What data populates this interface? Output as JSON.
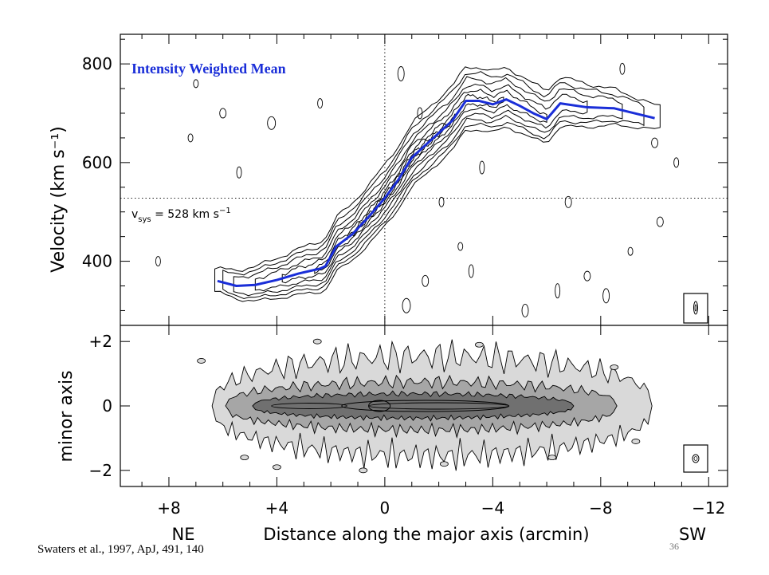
{
  "colors": {
    "mean_line": "#1a2ed8",
    "contour": "#000000",
    "fill_light": "#d9d9d9",
    "fill_mid": "#a6a6a6",
    "fill_dark": "#707070"
  },
  "chart_data": [
    {
      "type": "line",
      "panel": "top",
      "title": "Intensity Weighted Mean",
      "xlabel": "",
      "ylabel": "Velocity (km s⁻¹)",
      "xlim": [
        9.8,
        -12.7
      ],
      "ylim": [
        270,
        860
      ],
      "x_tick_values": [
        8,
        4,
        0,
        -4,
        -8,
        -12
      ],
      "y_tick_values": [
        400,
        600,
        800
      ],
      "y_tick_labels": [
        "400",
        "600",
        "800"
      ],
      "annotation_vsys": {
        "label": "v",
        "subscript": "sys",
        "text": " = 528 km s",
        "superscript": "−1",
        "value": 528
      },
      "series": [
        {
          "x": [
            6.2,
            5.5,
            4.8,
            4.0,
            3.2,
            2.4,
            2.2,
            1.8,
            1.2,
            0.6,
            0.0,
            -0.5,
            -1.0,
            -1.5,
            -2.0,
            -2.5,
            -3.0,
            -3.5,
            -4.0,
            -4.5,
            -5.0,
            -5.5,
            -6.0,
            -6.5,
            -7.5,
            -8.5,
            -10.0
          ],
          "y": [
            360,
            350,
            352,
            362,
            375,
            385,
            390,
            430,
            455,
            490,
            528,
            565,
            610,
            635,
            660,
            685,
            725,
            725,
            718,
            728,
            715,
            700,
            688,
            720,
            712,
            710,
            690
          ]
        }
      ]
    },
    {
      "type": "heatmap",
      "panel": "bottom",
      "title": "",
      "xlabel": "Distance along the major axis (arcmin)",
      "ylabel": "minor axis",
      "xlim": [
        9.8,
        -12.7
      ],
      "ylim": [
        -2.5,
        2.5
      ],
      "x_tick_values": [
        8,
        4,
        0,
        -4,
        -8,
        -12
      ],
      "x_tick_labels": [
        "+8",
        "+4",
        "0",
        "−4",
        "−8",
        "−12"
      ],
      "y_tick_values": [
        2,
        0,
        -2
      ],
      "y_tick_labels": [
        "+2",
        "0",
        "−2"
      ],
      "x_end_labels": {
        "left": "NE",
        "right": "SW"
      }
    }
  ],
  "citation": "Swaters et al., 1997, ApJ, 491, 140",
  "slide_number": "36"
}
